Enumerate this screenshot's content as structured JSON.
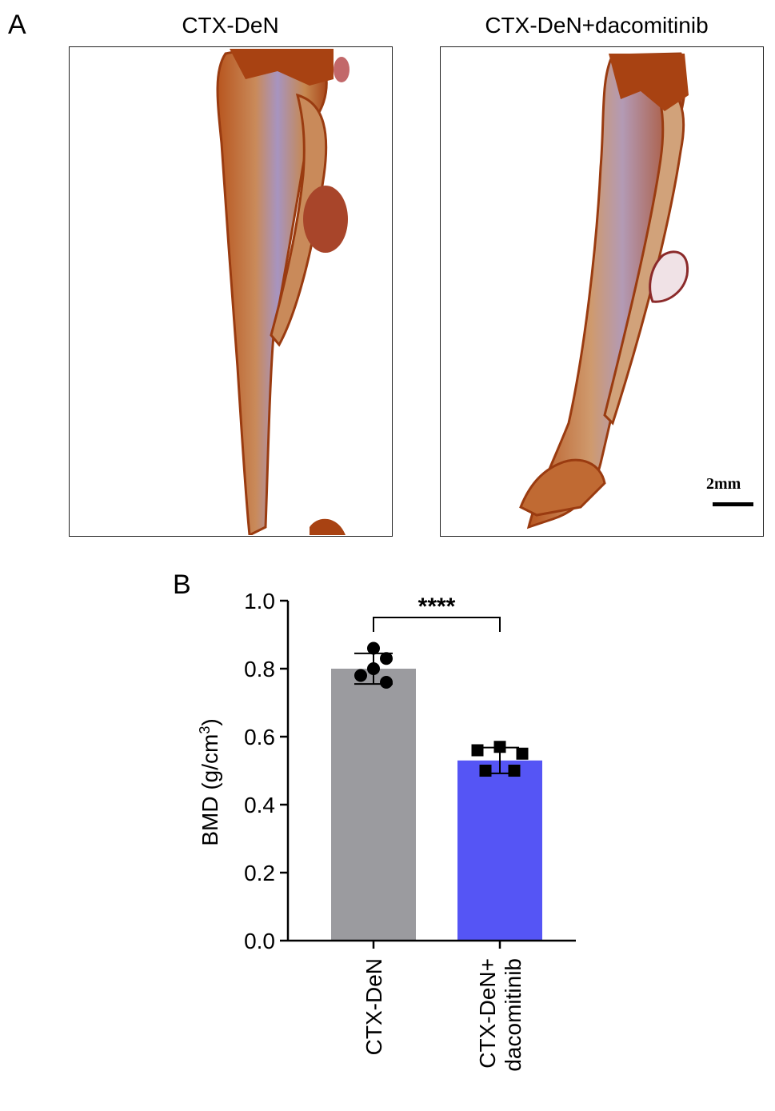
{
  "panel_a": {
    "letter": "A",
    "images": [
      {
        "title": "CTX-DeN"
      },
      {
        "title": "CTX-DeN+dacomitinib"
      }
    ],
    "scale_bar_label": "2mm"
  },
  "panel_b": {
    "letter": "B"
  },
  "chart_data": {
    "type": "bar",
    "categories": [
      "CTX-DeN",
      "CTX-DeN+ dacomitinib"
    ],
    "category_lines": [
      [
        "CTX-DeN"
      ],
      [
        "CTX-DeN+",
        "dacomitinib"
      ]
    ],
    "values": [
      0.8,
      0.53
    ],
    "error_sd": [
      0.045,
      0.038
    ],
    "points": [
      [
        0.86,
        0.83,
        0.78,
        0.8,
        0.76
      ],
      [
        0.56,
        0.57,
        0.5,
        0.55,
        0.5
      ]
    ],
    "point_markers": [
      "circle",
      "square"
    ],
    "bar_colors": [
      "#9b9b9f",
      "#5555f5"
    ],
    "ylabel": "BMD (g/cm",
    "ylabel_sup": "3",
    "ylabel_close": ")",
    "ylim": [
      0.0,
      1.0
    ],
    "yticks": [
      "0.0",
      "0.2",
      "0.4",
      "0.6",
      "0.8",
      "1.0"
    ],
    "significance": "****"
  }
}
